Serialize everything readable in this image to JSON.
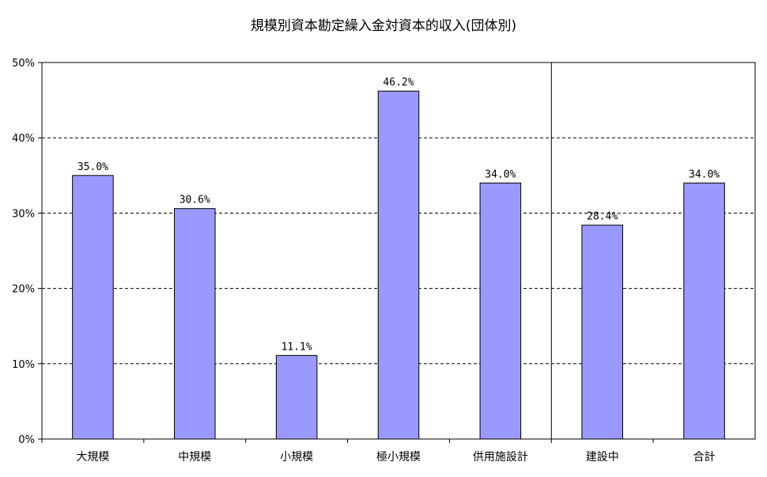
{
  "chart_data": {
    "type": "bar",
    "title": "規模別資本勘定繰入金対資本的収入(団体別)",
    "xlabel": "",
    "ylabel": "",
    "categories": [
      "大規模",
      "中規模",
      "小規模",
      "極小規模",
      "供用施設計",
      "建設中",
      "合計"
    ],
    "values": [
      35.0,
      30.6,
      11.1,
      46.2,
      34.0,
      28.4,
      34.0
    ],
    "data_labels": [
      "35.0%",
      "30.6%",
      "11.1%",
      "46.2%",
      "34.0%",
      "28.4%",
      "34.0%"
    ],
    "ylim": [
      0,
      50
    ],
    "yticks": [
      0,
      10,
      20,
      30,
      40,
      50
    ],
    "ytick_labels": [
      "0%",
      "10%",
      "20%",
      "30%",
      "40%",
      "50%"
    ],
    "grid": "horizontal-dashed",
    "legend": "none",
    "separator_after_category": "供用施設計",
    "colors": {
      "bar_fill": "#9999ff",
      "bar_stroke": "#000000",
      "grid": "#000000",
      "axis": "#000000"
    }
  }
}
